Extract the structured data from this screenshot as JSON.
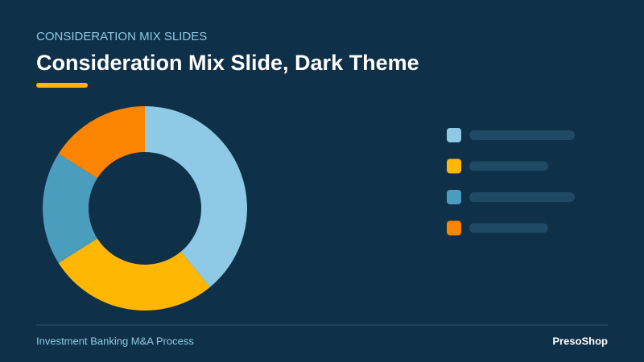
{
  "header": {
    "kicker": "CONSIDERATION MIX SLIDES",
    "title": "Consideration Mix Slide, Dark Theme"
  },
  "chart_data": {
    "type": "donut",
    "values": [
      39,
      27,
      18,
      16
    ],
    "colors": [
      "#8ecae6",
      "#ffb703",
      "#4b9dbd",
      "#fb8500"
    ]
  },
  "footer": {
    "left": "Investment Banking M&A Process",
    "right": "PresoShop"
  }
}
